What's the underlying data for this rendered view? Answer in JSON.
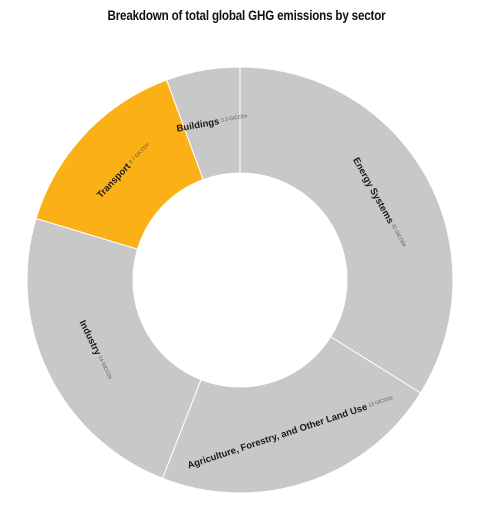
{
  "chart_data": {
    "type": "pie",
    "title": "Breakdown of total global GHG emissions by sector",
    "unit": "GtCO2e",
    "categories": [
      "Energy Systems",
      "Agriculture, Forestry, and Other Land Use",
      "Industry",
      "Transport",
      "Buildings"
    ],
    "values": [
      20,
      13,
      14,
      8.7,
      3.3
    ],
    "value_labels": [
      "20 GtCO2e",
      "13 GtCO2e",
      "14 GtCO2e",
      "8.7 GtCO2e",
      "3.3 GtCO2e"
    ],
    "colors": [
      "#c8c8c8",
      "#c8c8c8",
      "#c8c8c8",
      "#fbb116",
      "#c8c8c8"
    ],
    "highlighted": "Transport",
    "donut": true
  }
}
